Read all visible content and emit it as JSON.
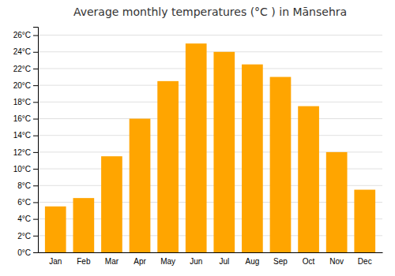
{
  "chart_data": {
    "type": "bar",
    "title": "Average monthly temperatures (°C ) in Mānsehra",
    "categories": [
      "Jan",
      "Feb",
      "Mar",
      "Apr",
      "May",
      "Jun",
      "Jul",
      "Aug",
      "Sep",
      "Oct",
      "Nov",
      "Dec"
    ],
    "values": [
      5.5,
      6.5,
      11.5,
      16.0,
      20.5,
      25.0,
      24.0,
      22.5,
      21.0,
      17.5,
      12.0,
      7.5
    ],
    "color": "#FFA500",
    "ylim": [
      0,
      27
    ],
    "yticks": [
      {
        "value": 0,
        "label": "0°C"
      },
      {
        "value": 2,
        "label": "2°C"
      },
      {
        "value": 4,
        "label": "4°C"
      },
      {
        "value": 6,
        "label": "6°C"
      },
      {
        "value": 8,
        "label": "8°C"
      },
      {
        "value": 10,
        "label": "10°C"
      },
      {
        "value": 12,
        "label": "12°C"
      },
      {
        "value": 14,
        "label": "14°C"
      },
      {
        "value": 16,
        "label": "16°C"
      },
      {
        "value": 18,
        "label": "18°C"
      },
      {
        "value": 20,
        "label": "20°C"
      },
      {
        "value": 22,
        "label": "22°C"
      },
      {
        "value": 24,
        "label": "24°C"
      },
      {
        "value": 26,
        "label": "26°C"
      }
    ],
    "grid": true
  }
}
